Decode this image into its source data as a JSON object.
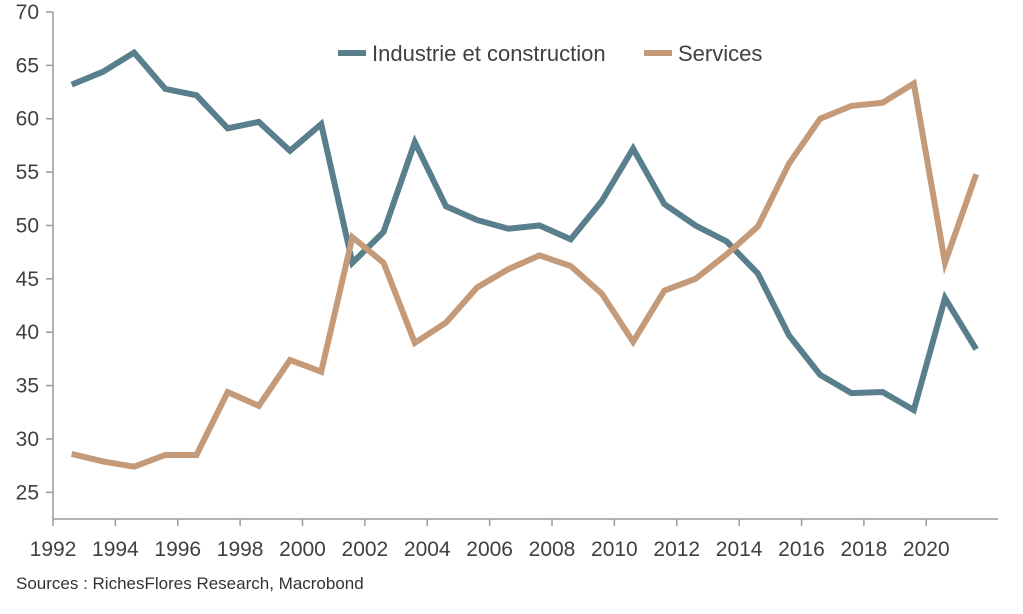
{
  "chart_data": {
    "type": "line",
    "x": [
      1992.6,
      1993.6,
      1994.6,
      1995.6,
      1996.6,
      1997.6,
      1998.6,
      1999.6,
      2000.6,
      2001.6,
      2002.6,
      2003.6,
      2004.6,
      2005.6,
      2006.6,
      2007.6,
      2008.6,
      2009.6,
      2010.6,
      2011.6,
      2012.6,
      2013.6,
      2014.6,
      2015.6,
      2016.6,
      2017.6,
      2018.6,
      2019.6,
      2020.6,
      2021.6
    ],
    "series": [
      {
        "name": "Industrie et construction",
        "color": "#5a7f8c",
        "values": [
          63.2,
          64.4,
          66.2,
          62.8,
          62.2,
          59.1,
          59.7,
          57.0,
          59.5,
          46.5,
          49.4,
          57.8,
          51.8,
          50.5,
          49.7,
          50.0,
          48.7,
          52.3,
          57.2,
          52.0,
          50.0,
          48.5,
          45.5,
          39.7,
          36.0,
          34.3,
          34.4,
          32.7,
          43.2,
          38.4
        ]
      },
      {
        "name": "Services",
        "color": "#c49a78",
        "values": [
          28.6,
          27.9,
          27.4,
          28.5,
          28.5,
          34.4,
          33.1,
          37.4,
          36.3,
          48.9,
          46.5,
          39.0,
          40.9,
          44.2,
          45.9,
          47.2,
          46.2,
          43.6,
          39.1,
          43.9,
          45.0,
          47.3,
          49.9,
          55.8,
          60.0,
          61.2,
          61.5,
          63.3,
          46.5,
          54.8
        ]
      }
    ],
    "x_ticks": [
      "1992",
      "1994",
      "1996",
      "1998",
      "2000",
      "2002",
      "2004",
      "2006",
      "2008",
      "2010",
      "2012",
      "2014",
      "2016",
      "2018",
      "2020"
    ],
    "y_ticks": [
      "25",
      "30",
      "35",
      "40",
      "45",
      "50",
      "55",
      "60",
      "65",
      "70"
    ],
    "xlim": [
      1992,
      2022.3
    ],
    "ylim": [
      22.5,
      70
    ],
    "legend_position": "top-center",
    "grid": false
  },
  "source": "Sources : RichesFlores Research, Macrobond"
}
